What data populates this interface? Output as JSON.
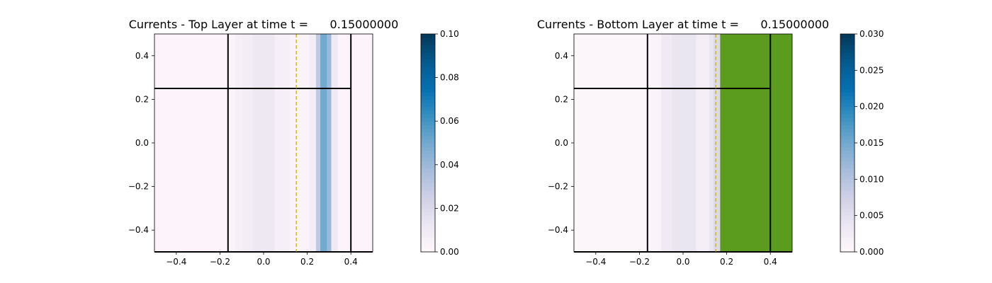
{
  "chart_data": [
    {
      "type": "heatmap",
      "title": "Currents - Top Layer at time t =      0.15000000",
      "xlim": [
        -0.5,
        0.5
      ],
      "ylim": [
        -0.5,
        0.5
      ],
      "x_ticks": [
        -0.4,
        -0.2,
        0.0,
        0.2,
        0.4
      ],
      "x_tick_labels": [
        "−0.4",
        "−0.2",
        "0.0",
        "0.2",
        "0.4"
      ],
      "y_ticks": [
        0.4,
        0.2,
        0.0,
        -0.2,
        -0.4
      ],
      "y_tick_labels": [
        "0.4",
        "0.2",
        "0.0",
        "−0.2",
        "−0.4"
      ],
      "grid": false,
      "colormap": "PuBu",
      "colorbar": {
        "range": [
          0.0,
          0.1
        ],
        "ticks": [
          0.0,
          0.02,
          0.04,
          0.06,
          0.08,
          0.1
        ],
        "tick_labels": [
          "0.00",
          "0.02",
          "0.04",
          "0.06",
          "0.08",
          "0.10"
        ]
      },
      "column_values": [
        {
          "x0": -0.5,
          "x1": -0.15,
          "value": 0.002
        },
        {
          "x0": -0.15,
          "x1": -0.13,
          "value": 0.003
        },
        {
          "x0": -0.13,
          "x1": -0.1,
          "value": 0.006
        },
        {
          "x0": -0.1,
          "x1": -0.05,
          "value": 0.008
        },
        {
          "x0": -0.05,
          "x1": 0.05,
          "value": 0.012
        },
        {
          "x0": 0.05,
          "x1": 0.12,
          "value": 0.006
        },
        {
          "x0": 0.12,
          "x1": 0.21,
          "value": 0.003
        },
        {
          "x0": 0.21,
          "x1": 0.24,
          "value": 0.008
        },
        {
          "x0": 0.24,
          "x1": 0.26,
          "value": 0.03
        },
        {
          "x0": 0.26,
          "x1": 0.29,
          "value": 0.05
        },
        {
          "x0": 0.29,
          "x1": 0.31,
          "value": 0.04
        },
        {
          "x0": 0.31,
          "x1": 0.34,
          "value": 0.01
        },
        {
          "x0": 0.34,
          "x1": 0.5,
          "value": 0.002
        }
      ],
      "boundary_lines": [
        {
          "x": [
            -0.163,
            -0.163
          ],
          "y": [
            -0.5,
            0.5
          ]
        },
        {
          "x": [
            0.4,
            0.4
          ],
          "y": [
            -0.5,
            0.5
          ]
        },
        {
          "x": [
            -0.5,
            0.4
          ],
          "y": [
            0.25,
            0.25
          ]
        },
        {
          "x": [
            -0.5,
            0.5
          ],
          "y": [
            -0.5,
            -0.5
          ]
        }
      ],
      "front_line": {
        "x": 0.15,
        "color": "#c8b400",
        "style": "dashed"
      }
    },
    {
      "type": "heatmap",
      "title": "Currents - Bottom Layer at time t =      0.15000000",
      "xlim": [
        -0.5,
        0.5
      ],
      "ylim": [
        -0.5,
        0.5
      ],
      "x_ticks": [
        -0.4,
        -0.2,
        0.0,
        0.2,
        0.4
      ],
      "x_tick_labels": [
        "−0.4",
        "−0.2",
        "0.0",
        "0.2",
        "0.4"
      ],
      "y_ticks": [
        0.4,
        0.2,
        0.0,
        -0.2,
        -0.4
      ],
      "y_tick_labels": [
        "0.4",
        "0.2",
        "0.0",
        "−0.2",
        "−0.4"
      ],
      "grid": false,
      "colormap": "PuBu",
      "colorbar": {
        "range": [
          0.0,
          0.03
        ],
        "ticks": [
          0.0,
          0.005,
          0.01,
          0.015,
          0.02,
          0.025,
          0.03
        ],
        "tick_labels": [
          "0.000",
          "0.005",
          "0.010",
          "0.015",
          "0.020",
          "0.025",
          "0.030"
        ]
      },
      "column_values": [
        {
          "x0": -0.5,
          "x1": -0.15,
          "value": 0.0005
        },
        {
          "x0": -0.15,
          "x1": -0.1,
          "value": 0.001
        },
        {
          "x0": -0.1,
          "x1": -0.05,
          "value": 0.003
        },
        {
          "x0": -0.05,
          "x1": 0.06,
          "value": 0.004
        },
        {
          "x0": 0.06,
          "x1": 0.12,
          "value": 0.002
        },
        {
          "x0": 0.12,
          "x1": 0.14,
          "value": 0.004
        },
        {
          "x0": 0.14,
          "x1": 0.17,
          "value": 0.006
        }
      ],
      "masked_region": {
        "x0": 0.17,
        "x1": 0.5,
        "color": "#5b9b1e"
      },
      "boundary_lines": [
        {
          "x": [
            -0.163,
            -0.163
          ],
          "y": [
            -0.5,
            0.5
          ]
        },
        {
          "x": [
            0.4,
            0.4
          ],
          "y": [
            -0.5,
            0.5
          ]
        },
        {
          "x": [
            -0.5,
            0.4
          ],
          "y": [
            0.25,
            0.25
          ]
        },
        {
          "x": [
            -0.5,
            0.5
          ],
          "y": [
            -0.5,
            -0.5
          ]
        }
      ],
      "front_line": {
        "x": 0.15,
        "color": "#c8b400",
        "style": "dashed"
      }
    }
  ]
}
